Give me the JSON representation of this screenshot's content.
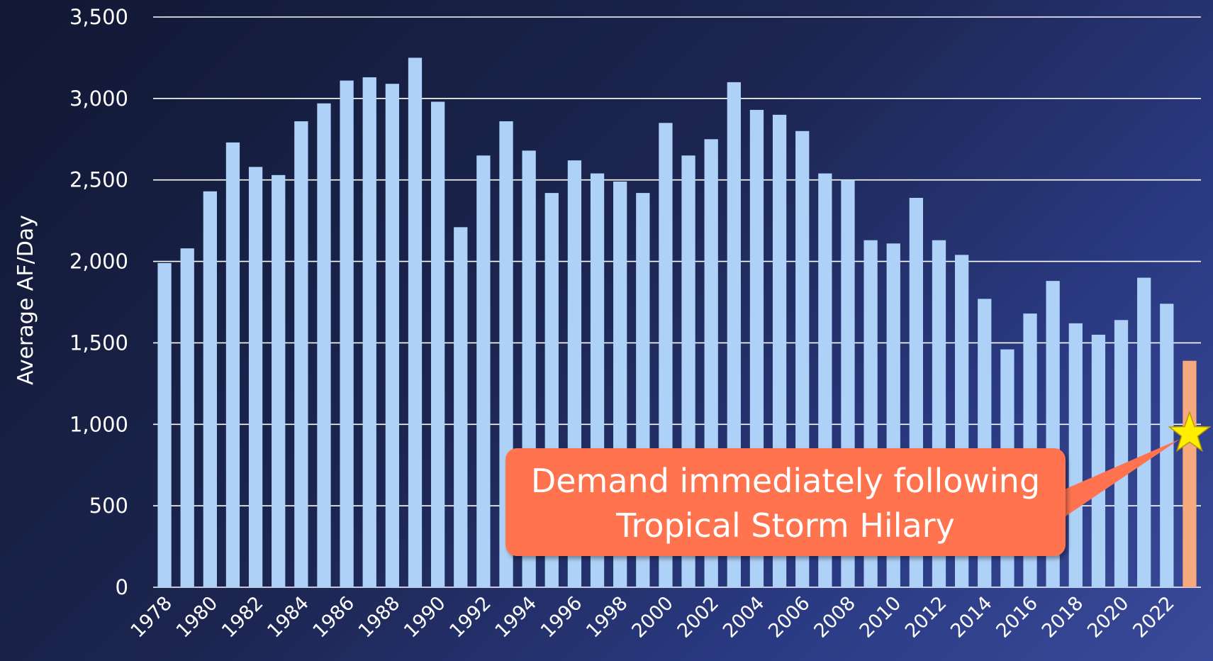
{
  "chart_data": {
    "type": "bar",
    "ylabel": "Average AF/Day",
    "xlabel": "",
    "ylim": [
      0,
      3500
    ],
    "yticks": [
      0,
      500,
      1000,
      1500,
      2000,
      2500,
      3000,
      3500
    ],
    "ytick_labels": [
      "0",
      "500",
      "1,000",
      "1,500",
      "2,000",
      "2,500",
      "3,000",
      "3,500"
    ],
    "grid": true,
    "categories": [
      "1978",
      "1979",
      "1980",
      "1981",
      "1982",
      "1983",
      "1984",
      "1985",
      "1986",
      "1987",
      "1988",
      "1989",
      "1990",
      "1991",
      "1992",
      "1993",
      "1994",
      "1995",
      "1996",
      "1997",
      "1998",
      "1999",
      "2000",
      "2001",
      "2002",
      "2003",
      "2004",
      "2005",
      "2006",
      "2007",
      "2008",
      "2009",
      "2010",
      "2011",
      "2012",
      "2013",
      "2014",
      "2015",
      "2016",
      "2017",
      "2018",
      "2019",
      "2020",
      "2021",
      "2022",
      "2023"
    ],
    "xtick_labels": [
      "1978",
      "1980",
      "1982",
      "1984",
      "1986",
      "1988",
      "1990",
      "1992",
      "1994",
      "1996",
      "1998",
      "2000",
      "2002",
      "2004",
      "2006",
      "2008",
      "2010",
      "2012",
      "2014",
      "2016",
      "2018",
      "2020",
      "2022"
    ],
    "values": [
      1990,
      2080,
      2430,
      2730,
      2580,
      2530,
      2860,
      2970,
      3110,
      3130,
      3090,
      3250,
      2980,
      2210,
      2650,
      2860,
      2680,
      2420,
      2620,
      2540,
      2490,
      2420,
      2850,
      2650,
      2750,
      3100,
      2930,
      2900,
      2800,
      2540,
      2500,
      2130,
      2110,
      2390,
      2130,
      2040,
      1770,
      1460,
      1680,
      1880,
      1620,
      1550,
      1640,
      1900,
      1740,
      1390
    ],
    "colors": {
      "bar": "#aed1f7",
      "highlight_bar": "#f4a97e",
      "callout": "#ff7350",
      "star": "#ffee00",
      "grid": "#ffffff"
    },
    "highlight_index": 45,
    "annotation": {
      "lines": [
        "Demand immediately following",
        "Tropical Storm Hilary"
      ],
      "marker_value": 900,
      "marker": "star-icon"
    }
  }
}
